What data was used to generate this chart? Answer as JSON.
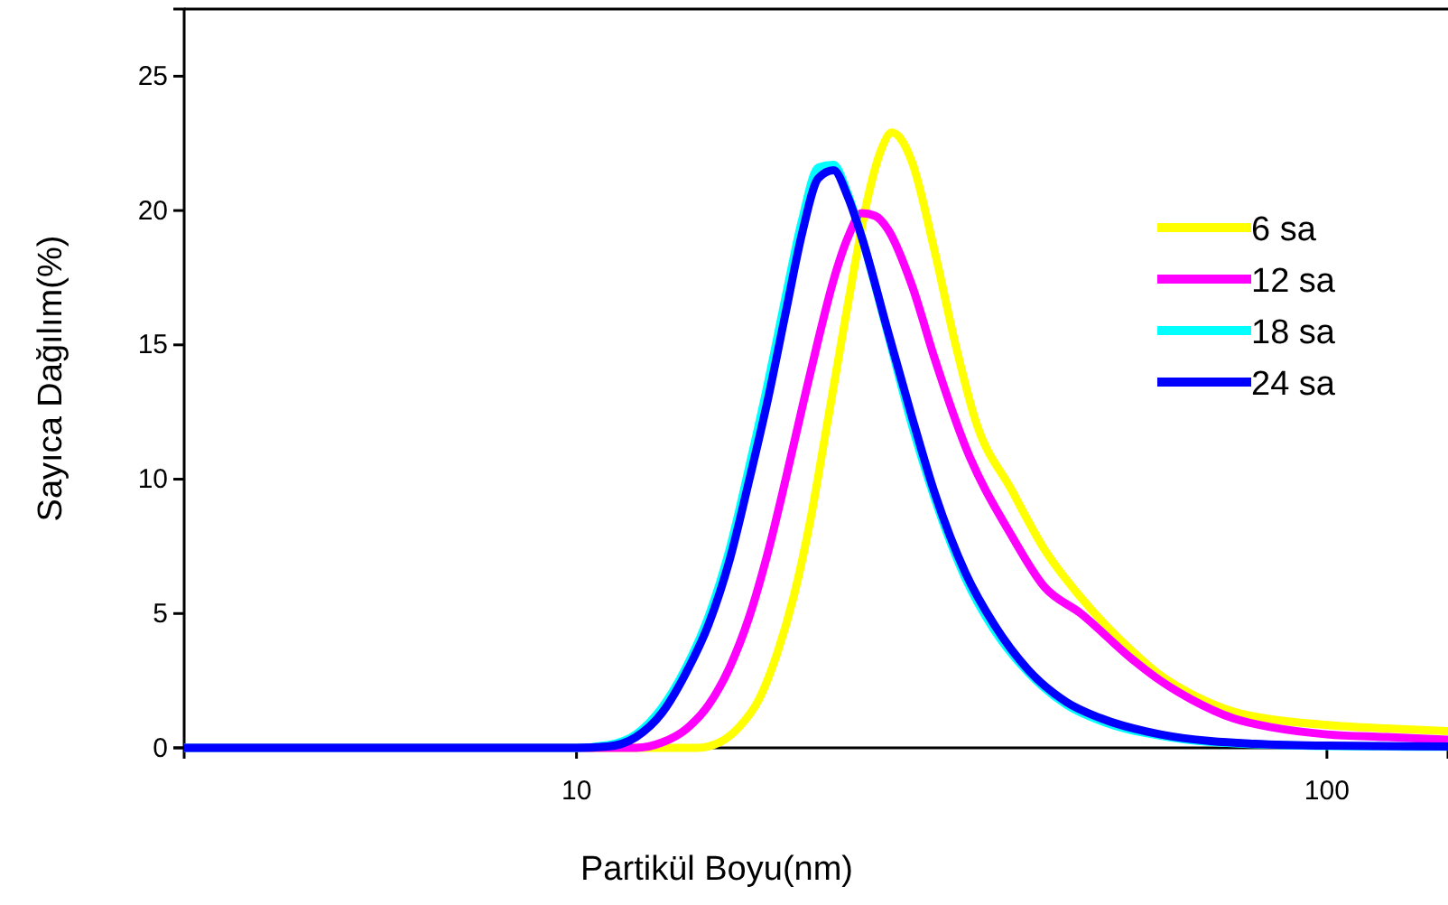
{
  "chart_data": {
    "type": "line",
    "xlabel": "Partikül Boyu(nm)",
    "ylabel": "Sayıca Dağılım(%)",
    "log": "x",
    "xlim": [
      3,
      145
    ],
    "xticks": [
      10,
      100
    ],
    "ylim": [
      0,
      27.5
    ],
    "yticks": [
      0,
      5,
      10,
      15,
      20,
      25
    ],
    "grid": false,
    "legend": "top right",
    "marker": "none",
    "line_style": "solid",
    "series": [
      {
        "name": "6 sa",
        "color": "#ffff00",
        "x": [
          3,
          10,
          14.5,
          15.5,
          16.5,
          17.5,
          18.5,
          19.5,
          20.5,
          21.5,
          22.5,
          23.5,
          24.5,
          25.5,
          26.3,
          27,
          28,
          30,
          32,
          34,
          38,
          42,
          47,
          55,
          60,
          66,
          75,
          85,
          100,
          120,
          145
        ],
        "values": [
          0,
          0,
          0,
          0.2,
          0.8,
          1.8,
          3.5,
          5.7,
          8.5,
          11.8,
          15,
          18,
          20.6,
          22.3,
          22.9,
          22.7,
          21.8,
          18.5,
          15,
          12.2,
          9.6,
          7.4,
          5.6,
          3.6,
          2.7,
          2,
          1.35,
          1.05,
          0.85,
          0.72,
          0.62
        ]
      },
      {
        "name": "12 sa",
        "color": "#ff00ff",
        "x": [
          3,
          10,
          12,
          13,
          14,
          15,
          16,
          17,
          18,
          19,
          20,
          21,
          22,
          23,
          24,
          25,
          26,
          28,
          30,
          33,
          38,
          42,
          47,
          55,
          60,
          66,
          75,
          85,
          100,
          120,
          145
        ],
        "values": [
          0,
          0,
          0,
          0.2,
          0.7,
          1.6,
          3,
          4.9,
          7.3,
          10,
          12.7,
          15.2,
          17.4,
          19,
          19.9,
          19.8,
          19.3,
          17.2,
          14.5,
          11.2,
          7.9,
          6,
          5,
          3.3,
          2.5,
          1.8,
          1.1,
          0.75,
          0.5,
          0.4,
          0.3
        ]
      },
      {
        "name": "18 sa",
        "color": "#00ffff",
        "x": [
          3,
          10,
          11,
          12,
          13,
          14,
          15,
          16,
          17,
          18,
          19,
          20,
          21,
          22,
          23,
          24,
          26,
          28,
          30,
          33,
          36,
          40,
          45,
          50,
          60,
          70,
          100,
          145
        ],
        "values": [
          0,
          0,
          0.1,
          0.5,
          1.5,
          3,
          4.9,
          7.4,
          10.5,
          13.6,
          16.8,
          19.7,
          21.6,
          21.7,
          20.6,
          19,
          15.4,
          12,
          9.3,
          6.3,
          4.4,
          2.8,
          1.6,
          1,
          0.45,
          0.22,
          0.07,
          0.04
        ]
      },
      {
        "name": "24 sa",
        "color": "#0000ff",
        "x": [
          3,
          10,
          11,
          12,
          13,
          14,
          15,
          16,
          17,
          18,
          19,
          20,
          21,
          22,
          23,
          24,
          26,
          28,
          30,
          33,
          36,
          40,
          45,
          50,
          60,
          70,
          80,
          100,
          145
        ],
        "values": [
          0,
          0,
          0.05,
          0.4,
          1.3,
          2.8,
          4.6,
          7,
          10,
          13,
          16.2,
          19.2,
          21.2,
          21.5,
          20.5,
          19,
          15.5,
          12.3,
          9.5,
          6.5,
          4.6,
          2.9,
          1.7,
          1.1,
          0.5,
          0.25,
          0.15,
          0.08,
          0.05
        ]
      }
    ]
  }
}
